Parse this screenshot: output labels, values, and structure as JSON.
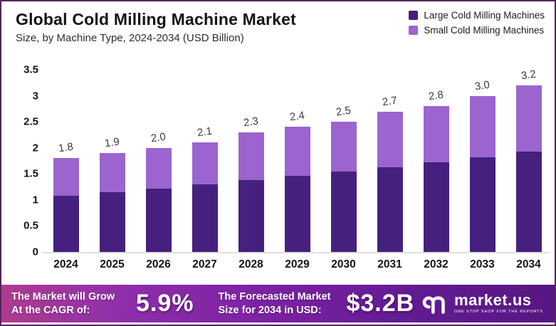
{
  "header": {
    "title": "Global Cold Milling Machine Market",
    "subtitle": "Size, by Machine Type, 2024-2034 (USD Billion)"
  },
  "legend": {
    "items": [
      {
        "label": "Large Cold Milling Machines",
        "color": "#46207e"
      },
      {
        "label": "Small Cold Milling Machines",
        "color": "#9b64cf"
      }
    ]
  },
  "chart_data": {
    "type": "bar",
    "stacked": true,
    "title": "Global Cold Milling Machine Market",
    "subtitle": "Size, by Machine Type, 2024-2034 (USD Billion)",
    "unit": "USD Billion",
    "categories": [
      "2024",
      "2025",
      "2026",
      "2027",
      "2028",
      "2029",
      "2030",
      "2031",
      "2032",
      "2033",
      "2034"
    ],
    "series": [
      {
        "name": "Large Cold Milling Machines",
        "color": "#46207e",
        "values": [
          1.08,
          1.15,
          1.22,
          1.3,
          1.38,
          1.46,
          1.54,
          1.63,
          1.72,
          1.82,
          1.93
        ]
      },
      {
        "name": "Small Cold Milling Machines",
        "color": "#9b64cf",
        "values": [
          0.72,
          0.75,
          0.78,
          0.8,
          0.92,
          0.94,
          0.96,
          1.07,
          1.08,
          1.18,
          1.27
        ]
      }
    ],
    "totals": [
      1.8,
      1.9,
      2.0,
      2.1,
      2.3,
      2.4,
      2.5,
      2.7,
      2.8,
      3.0,
      3.2
    ],
    "total_labels": [
      "1.8",
      "1.9",
      "2.0",
      "2.1",
      "2.3",
      "2.4",
      "2.5",
      "2.7",
      "2.8",
      "3.0",
      "3.2"
    ],
    "xlabel": "",
    "ylabel": "",
    "ylim": [
      0,
      3.5
    ],
    "yticks": {
      "values": [
        0,
        0.5,
        1,
        1.5,
        2,
        2.5,
        3,
        3.5
      ],
      "labels": [
        "0",
        "0.5",
        "1",
        "1.5",
        "2",
        "2.5",
        "3",
        "3.5"
      ]
    },
    "grid": false,
    "legend_position": "top-right"
  },
  "banner": {
    "cagr_label_line1": "The Market will Grow",
    "cagr_label_line2": "At the CAGR of:",
    "cagr_value": "5.9%",
    "forecast_label_line1": "The Forecasted Market",
    "forecast_label_line2": "Size for 2034 in USD:",
    "forecast_value": "$3.2B",
    "logo_text": "market.us",
    "logo_tagline": "ONE STOP SHOP FOR THE REPORTS"
  },
  "colors": {
    "large_series": "#46207e",
    "small_series": "#9b64cf",
    "page_border": "#53245f",
    "baseline": "#dedede",
    "banner_gradient_left": "#af3c8e",
    "banner_gradient_mid": "#7b21a3",
    "banner_gradient_right": "#571682"
  }
}
